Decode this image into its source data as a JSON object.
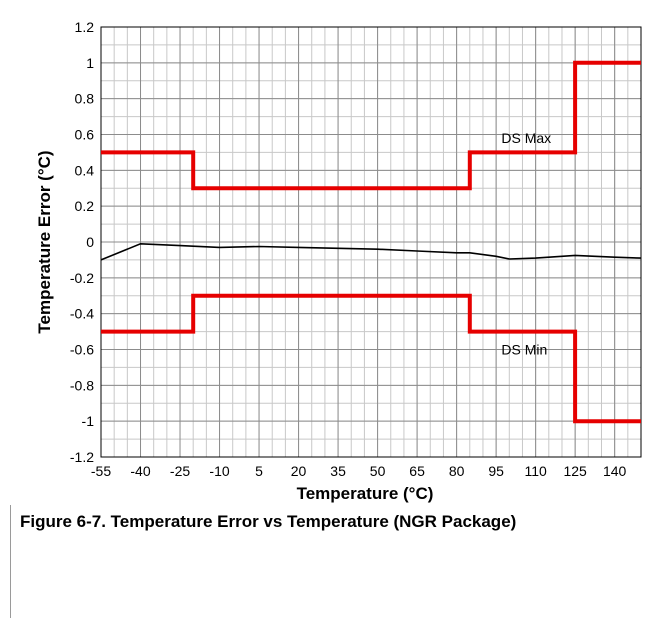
{
  "figure": {
    "caption": "Figure 6-7. Temperature Error vs Temperature (NGR Package)"
  },
  "chart_data": {
    "type": "line",
    "title": "",
    "xlabel": "Temperature (°C)",
    "ylabel": "Temperature Error (°C)",
    "xlim": [
      -55,
      150
    ],
    "ylim": [
      -1.2,
      1.2
    ],
    "x_ticks": [
      -55,
      -40,
      -25,
      -10,
      5,
      20,
      35,
      50,
      65,
      80,
      95,
      110,
      125,
      140
    ],
    "x_tick_labels": [
      "-55",
      "-40",
      "-25",
      "-10",
      "5",
      "20",
      "35",
      "50",
      "65",
      "80",
      "95",
      "110",
      "125",
      "140"
    ],
    "y_ticks": [
      -1.2,
      -1,
      -0.8,
      -0.6,
      -0.4,
      -0.2,
      0,
      0.2,
      0.4,
      0.6,
      0.8,
      1,
      1.2
    ],
    "y_tick_labels": [
      "-1.2",
      "-1",
      "-0.8",
      "-0.6",
      "-0.4",
      "-0.2",
      "0",
      "0.2",
      "0.4",
      "0.6",
      "0.8",
      "1",
      "1.2"
    ],
    "grid": true,
    "x_minor_step": 5,
    "y_minor_step": 0.1,
    "series": [
      {
        "name": "DS Max",
        "color": "#e60000",
        "style": "step",
        "x": [
          -55,
          -20,
          -20,
          85,
          85,
          125,
          125,
          150
        ],
        "y": [
          0.5,
          0.5,
          0.3,
          0.3,
          0.5,
          0.5,
          1.0,
          1.0
        ]
      },
      {
        "name": "DS Min",
        "color": "#e60000",
        "style": "step",
        "x": [
          -55,
          -20,
          -20,
          85,
          85,
          125,
          125,
          150
        ],
        "y": [
          -0.5,
          -0.5,
          -0.3,
          -0.3,
          -0.5,
          -0.5,
          -1.0,
          -1.0
        ]
      },
      {
        "name": "",
        "color": "#000000",
        "style": "line",
        "x": [
          -55,
          -40,
          -25,
          -10,
          5,
          20,
          35,
          50,
          65,
          80,
          85,
          95,
          100,
          110,
          125,
          140,
          150
        ],
        "y": [
          -0.1,
          -0.01,
          -0.02,
          -0.03,
          -0.025,
          -0.03,
          -0.035,
          -0.04,
          -0.05,
          -0.06,
          -0.06,
          -0.08,
          -0.095,
          -0.09,
          -0.075,
          -0.085,
          -0.09
        ]
      }
    ],
    "annotations": [
      {
        "text": "DS Max",
        "x": 97,
        "y": 0.58
      },
      {
        "text": "DS Min",
        "x": 97,
        "y": -0.6
      }
    ]
  }
}
